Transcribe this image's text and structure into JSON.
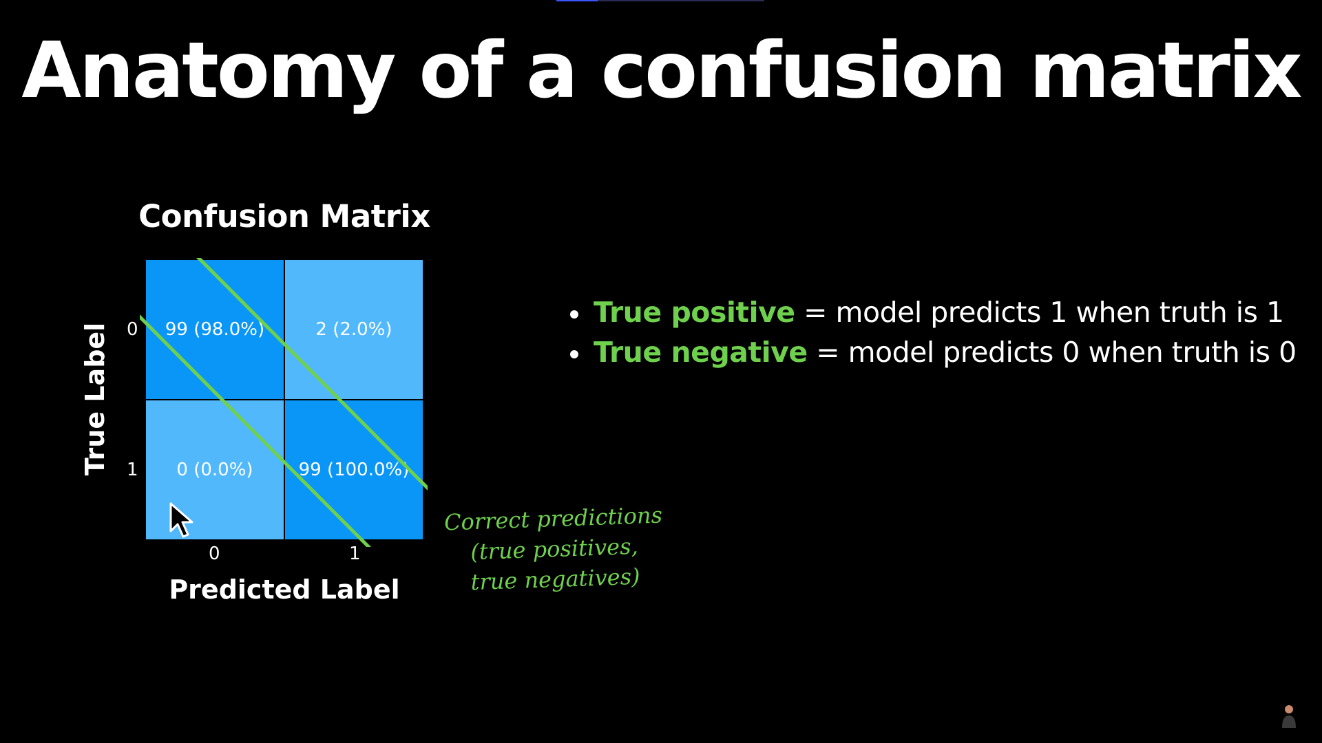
{
  "slide": {
    "title": "Anatomy of a confusion matrix",
    "progress": 0.2
  },
  "chart_data": {
    "type": "heatmap",
    "title": "Confusion Matrix",
    "xlabel": "Predicted Label",
    "ylabel": "True Label",
    "x_ticks": [
      "0",
      "1"
    ],
    "y_ticks": [
      "0",
      "1"
    ],
    "cells": [
      [
        {
          "count": 99,
          "label": "99 (98.0%)"
        },
        {
          "count": 2,
          "label": "2 (2.0%)"
        }
      ],
      [
        {
          "count": 0,
          "label": "0 (0.0%)"
        },
        {
          "count": 99,
          "label": "99 (100.0%)"
        }
      ]
    ],
    "colors": {
      "high": "#0a96f7",
      "low": "#52b8fc"
    }
  },
  "annotation": {
    "line1": "Correct predictions",
    "line2": "(true positives,",
    "line3": "true negatives)",
    "color": "#6fd04e"
  },
  "bullets": [
    {
      "term": "True positive",
      "text": " = model predicts 1 when truth is 1"
    },
    {
      "term": "True negative",
      "text": " = model predicts 0 when truth is 0"
    }
  ],
  "colors": {
    "background": "#000000",
    "accent_green": "#6fd04e",
    "text": "#ffffff"
  }
}
